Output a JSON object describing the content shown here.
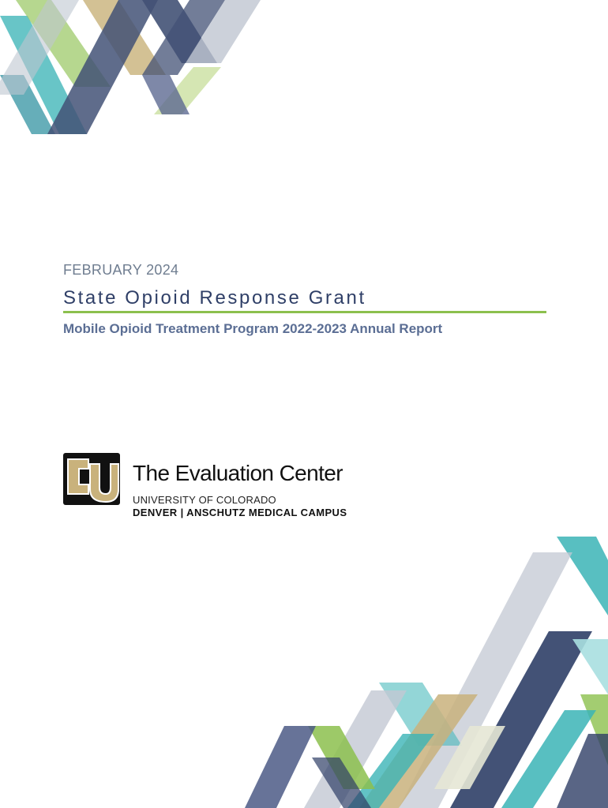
{
  "cover": {
    "date": "FEBRUARY 2024",
    "title": "State Opioid Response Grant",
    "subtitle": "Mobile Opioid Treatment Program 2022-2023 Annual Report"
  },
  "organization": {
    "name": "The Evaluation Center",
    "university": "UNIVERSITY OF COLORADO",
    "campus": "DENVER | ANSCHUTZ MEDICAL CAMPUS"
  },
  "colors": {
    "navy": "#2f3f67",
    "slate": "#6f7d90",
    "accent_green": "#8cc04e",
    "subtitle_blue": "#5b6e94",
    "teal": "#3bb4b6",
    "gold": "#c9b27c"
  },
  "icons": {
    "top_decoration": "geometric-stripes-graphic",
    "bottom_decoration": "geometric-stripes-graphic",
    "logo": "cu-logo-icon"
  }
}
